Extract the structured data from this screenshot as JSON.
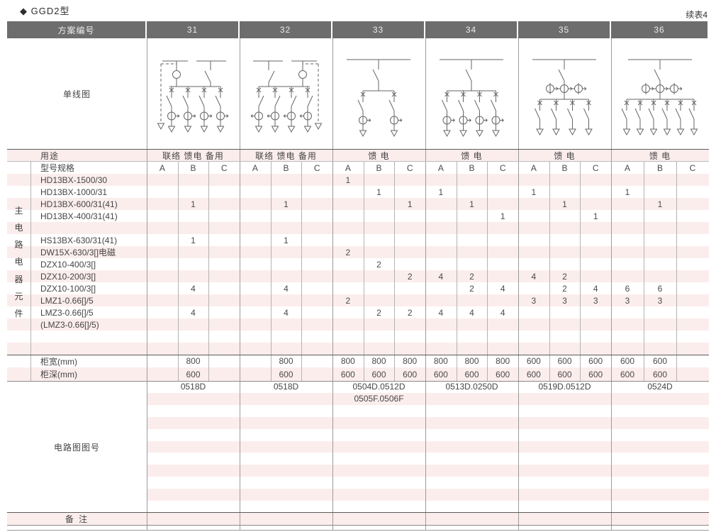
{
  "page": {
    "title": "◆ GGD2型",
    "continuation": "续表4"
  },
  "header": {
    "label": "方案编号",
    "schemes": [
      "31",
      "32",
      "33",
      "34",
      "35",
      "36"
    ]
  },
  "single_line_row": {
    "label": "单线图",
    "diagrams": [
      "tie-feeder-with-left-reserve-4way-ct",
      "tie-feeder-with-right-reserve-4way-ct",
      "feeder-2-way-inline-ct",
      "feeder-4-way-inline-ct",
      "feeder-4-way-top-ct-group",
      "feeder-6-way-top-ct-group"
    ]
  },
  "usage_row": {
    "label": "用途",
    "values": [
      "联络 馈电 备用",
      "联络 馈电 备用",
      "馈 电",
      "馈 电",
      "馈 电",
      "馈 电"
    ]
  },
  "spec_section": {
    "header_label": "型号规格",
    "sub_columns": [
      "A",
      "B",
      "C"
    ],
    "side_label": "主电路电器元件",
    "rows": [
      {
        "model": "HD13BX-1500/30",
        "values": [
          "",
          "",
          "",
          "",
          "",
          "",
          "1",
          "",
          "",
          "",
          "",
          "",
          "",
          "",
          "",
          "",
          "",
          ""
        ]
      },
      {
        "model": "HD13BX-1000/31",
        "values": [
          "",
          "",
          "",
          "",
          "",
          "",
          "",
          "1",
          "",
          "1",
          "",
          "",
          "1",
          "",
          "",
          "1",
          "",
          ""
        ]
      },
      {
        "model": "HD13BX-600/31(41)",
        "values": [
          "",
          "1",
          "",
          "",
          "1",
          "",
          "",
          "",
          "1",
          "",
          "1",
          "",
          "",
          "1",
          "",
          "",
          "1",
          ""
        ]
      },
      {
        "model": "HD13BX-400/31(41)",
        "values": [
          "",
          "",
          "",
          "",
          "",
          "",
          "",
          "",
          "",
          "",
          "",
          "1",
          "",
          "",
          "1",
          "",
          "",
          ""
        ]
      },
      {
        "model": "",
        "values": [
          "",
          "",
          "",
          "",
          "",
          "",
          "",
          "",
          "",
          "",
          "",
          "",
          "",
          "",
          "",
          "",
          "",
          ""
        ]
      },
      {
        "model": "HS13BX-630/31(41)",
        "values": [
          "",
          "1",
          "",
          "",
          "1",
          "",
          "",
          "",
          "",
          "",
          "",
          "",
          "",
          "",
          "",
          "",
          "",
          ""
        ]
      },
      {
        "model": "DW15X-630/3[]电磁",
        "values": [
          "",
          "",
          "",
          "",
          "",
          "",
          "2",
          "",
          "",
          "",
          "",
          "",
          "",
          "",
          "",
          "",
          "",
          ""
        ]
      },
      {
        "model": "DZX10-400/3[]",
        "values": [
          "",
          "",
          "",
          "",
          "",
          "",
          "",
          "2",
          "",
          "",
          "",
          "",
          "",
          "",
          "",
          "",
          "",
          ""
        ]
      },
      {
        "model": "DZX10-200/3[]",
        "values": [
          "",
          "",
          "",
          "",
          "",
          "",
          "",
          "",
          "2",
          "4",
          "2",
          "",
          "4",
          "2",
          "",
          "",
          "",
          ""
        ]
      },
      {
        "model": "DZX10-100/3[]",
        "values": [
          "",
          "4",
          "",
          "",
          "4",
          "",
          "",
          "",
          "",
          "",
          "2",
          "4",
          "",
          "2",
          "4",
          "6",
          "6",
          ""
        ]
      },
      {
        "model": "LMZ1-0.66[]/5",
        "values": [
          "",
          "",
          "",
          "",
          "",
          "",
          "2",
          "",
          "",
          "",
          "",
          "",
          "3",
          "3",
          "3",
          "3",
          "3",
          ""
        ]
      },
      {
        "model": "LMZ3-0.66[]/5",
        "values": [
          "",
          "4",
          "",
          "",
          "4",
          "",
          "",
          "2",
          "2",
          "4",
          "4",
          "4",
          "",
          "",
          "",
          "",
          "",
          ""
        ]
      },
      {
        "model": "(LMZ3-0.66[]/5)",
        "values": [
          "",
          "",
          "",
          "",
          "",
          "",
          "",
          "",
          "",
          "",
          "",
          "",
          "",
          "",
          "",
          "",
          "",
          ""
        ]
      },
      {
        "model": "",
        "values": [
          "",
          "",
          "",
          "",
          "",
          "",
          "",
          "",
          "",
          "",
          "",
          "",
          "",
          "",
          "",
          "",
          "",
          ""
        ]
      },
      {
        "model": "",
        "values": [
          "",
          "",
          "",
          "",
          "",
          "",
          "",
          "",
          "",
          "",
          "",
          "",
          "",
          "",
          "",
          "",
          "",
          ""
        ]
      }
    ]
  },
  "dimension_rows": [
    {
      "label": "柜宽(mm)",
      "values": [
        "",
        "800",
        "",
        "",
        "800",
        "",
        "800",
        "800",
        "800",
        "800",
        "800",
        "800",
        "600",
        "600",
        "600",
        "600",
        "600",
        ""
      ]
    },
    {
      "label": "柜深(mm)",
      "values": [
        "",
        "600",
        "",
        "",
        "600",
        "",
        "600",
        "600",
        "600",
        "600",
        "600",
        "600",
        "600",
        "600",
        "600",
        "600",
        "600",
        ""
      ]
    }
  ],
  "diagram_number_section": {
    "label": "电路图图号",
    "line1": [
      "0518D",
      "0518D",
      "0504D.0512D",
      "0513D.0250D",
      "0519D.0512D",
      "0524D"
    ],
    "line2": [
      "",
      "",
      "0505F.0506F",
      "",
      "",
      ""
    ]
  },
  "remarks_row": {
    "label": "备 注"
  },
  "colors": {
    "header_bg": "#6d6d6d",
    "header_text": "#ececec",
    "stripe_pink": "#fceded",
    "line_dark": "#5a5a5a",
    "line_mid": "#8a8a8a",
    "line_light": "#9b9b9b",
    "text": "#454545"
  }
}
